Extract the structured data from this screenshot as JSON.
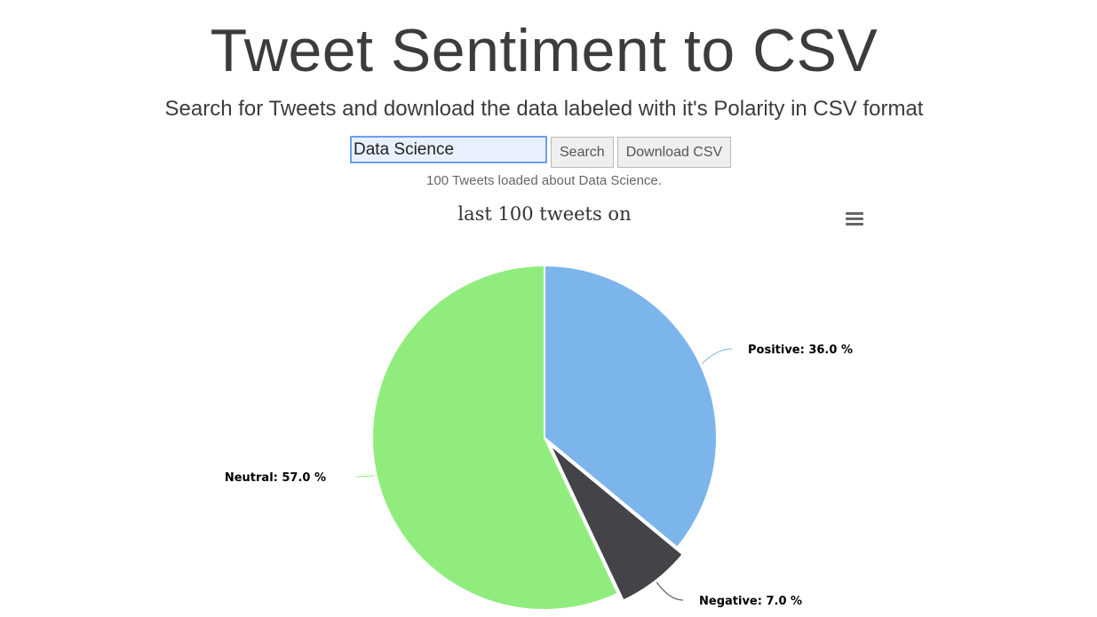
{
  "header": {
    "title": "Tweet Sentiment to CSV",
    "subtitle": "Search for Tweets and download the data labeled with it's Polarity in CSV format"
  },
  "search": {
    "value": "Data Science",
    "search_button": "Search",
    "download_button": "Download CSV"
  },
  "status": "100 Tweets loaded about Data Science.",
  "menu_icon": "hamburger-menu-icon",
  "chart_data": {
    "type": "pie",
    "title": "last 100 tweets on",
    "slices": [
      {
        "name": "Positive",
        "value": 36.0,
        "label": "Positive: 36.0 %",
        "color": "#7cb5ec",
        "sliced": false
      },
      {
        "name": "Negative",
        "value": 7.0,
        "label": "Negative: 7.0 %",
        "color": "#434348",
        "sliced": true
      },
      {
        "name": "Neutral",
        "value": 57.0,
        "label": "Neutral: 57.0 %",
        "color": "#90ed7d",
        "sliced": false
      }
    ]
  }
}
